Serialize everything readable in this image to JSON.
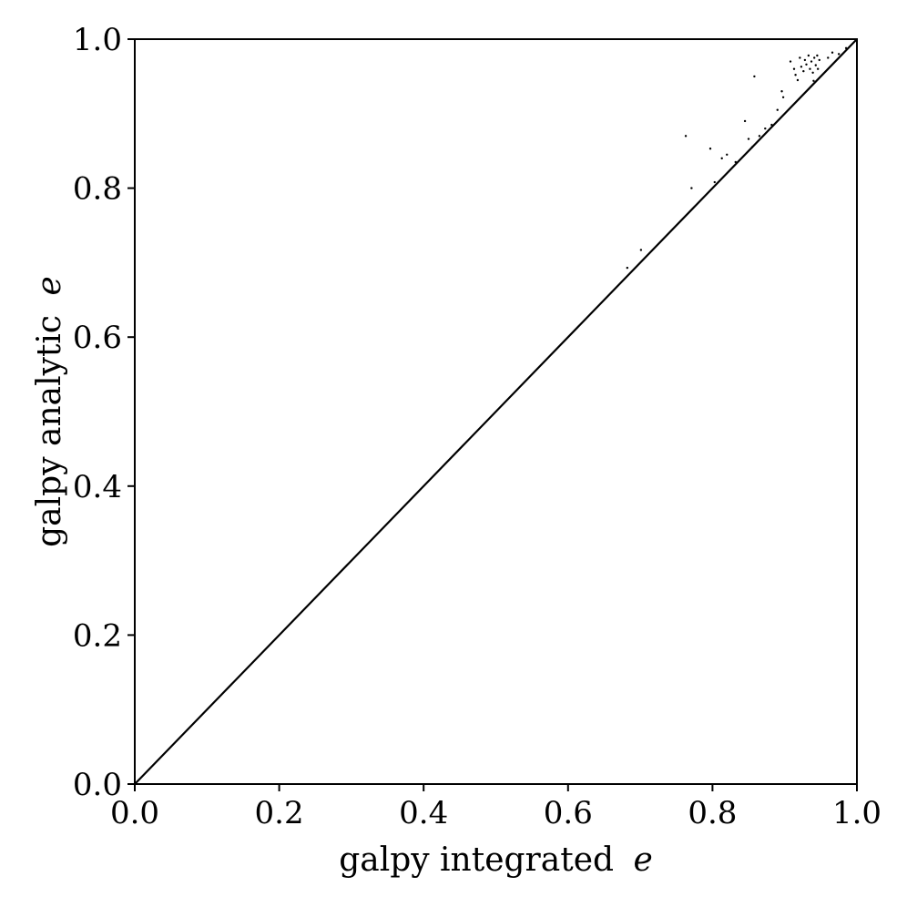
{
  "chart_data": {
    "type": "scatter",
    "xlabel": "galpy integrated",
    "ylabel": "galpy analytic",
    "axis_symbol": "e",
    "xlim": [
      0.0,
      1.0
    ],
    "ylim": [
      0.0,
      1.0
    ],
    "xticks": [
      "0.0",
      "0.2",
      "0.4",
      "0.6",
      "0.8",
      "1.0"
    ],
    "yticks": [
      "0.0",
      "0.2",
      "0.4",
      "0.6",
      "0.8",
      "1.0"
    ],
    "grid": false,
    "line_segment": {
      "x": [
        0.0,
        1.0
      ],
      "y": [
        0.0,
        1.0
      ],
      "note": "dense points along y=x"
    },
    "outliers": [
      [
        0.682,
        0.693
      ],
      [
        0.701,
        0.717
      ],
      [
        0.763,
        0.87
      ],
      [
        0.771,
        0.8
      ],
      [
        0.797,
        0.853
      ],
      [
        0.803,
        0.808
      ],
      [
        0.813,
        0.84
      ],
      [
        0.82,
        0.845
      ],
      [
        0.832,
        0.835
      ],
      [
        0.845,
        0.89
      ],
      [
        0.85,
        0.866
      ],
      [
        0.855,
        0.855
      ],
      [
        0.858,
        0.95
      ],
      [
        0.865,
        0.87
      ],
      [
        0.873,
        0.88
      ],
      [
        0.882,
        0.885
      ],
      [
        0.89,
        0.905
      ],
      [
        0.896,
        0.93
      ],
      [
        0.898,
        0.922
      ],
      [
        0.908,
        0.97
      ],
      [
        0.913,
        0.96
      ],
      [
        0.915,
        0.952
      ],
      [
        0.918,
        0.945
      ],
      [
        0.921,
        0.975
      ],
      [
        0.923,
        0.963
      ],
      [
        0.926,
        0.957
      ],
      [
        0.928,
        0.972
      ],
      [
        0.93,
        0.966
      ],
      [
        0.933,
        0.978
      ],
      [
        0.935,
        0.96
      ],
      [
        0.937,
        0.97
      ],
      [
        0.939,
        0.955
      ],
      [
        0.941,
        0.975
      ],
      [
        0.943,
        0.965
      ],
      [
        0.945,
        0.978
      ],
      [
        0.946,
        0.96
      ],
      [
        0.948,
        0.972
      ],
      [
        0.94,
        0.944
      ],
      [
        0.96,
        0.975
      ],
      [
        0.966,
        0.982
      ],
      [
        0.975,
        0.98
      ],
      [
        0.985,
        0.988
      ]
    ]
  }
}
